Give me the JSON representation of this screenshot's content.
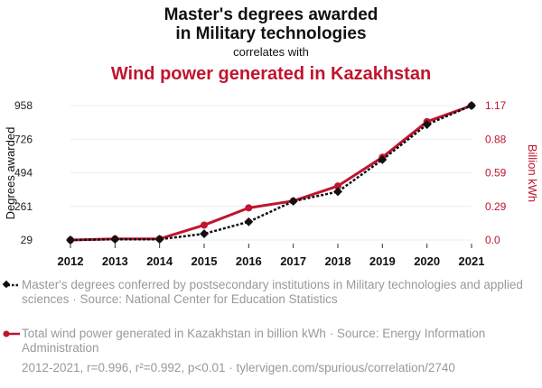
{
  "title_line1": "Master's degrees awarded",
  "title_line2": "in Military technologies",
  "subtitle": "correlates with",
  "title_series2": "Wind power generated in Kazakhstan",
  "chart_data": {
    "type": "line",
    "x": [
      2012,
      2013,
      2014,
      2015,
      2016,
      2017,
      2018,
      2019,
      2020,
      2021
    ],
    "series": [
      {
        "name": "Master's degrees conferred by postsecondary institutions in Military technologies and applied sciences · Source: National Center for Education Statistics",
        "axis": "left",
        "color": "#111111",
        "values": [
          29,
          34,
          34,
          72,
          155,
          297,
          363,
          584,
          827,
          958
        ]
      },
      {
        "name": "Total wind power generated in Kazakhstan in billion kWh · Source: Energy Information Administration",
        "axis": "right",
        "color": "#c0152f",
        "values": [
          0.0,
          0.01,
          0.01,
          0.13,
          0.28,
          0.34,
          0.47,
          0.72,
          1.03,
          1.17
        ]
      }
    ],
    "ylabel": "Degrees awarded",
    "ylabel_right": "Billion kWh",
    "yticks_left": [
      "958",
      "726",
      "494",
      "261",
      "29"
    ],
    "yticks_right": [
      "1.17",
      "0.88",
      "0.59",
      "0.29",
      "0.0"
    ],
    "ylim_left": [
      29,
      958
    ],
    "ylim_right": [
      0.0,
      1.17
    ],
    "grid": true
  },
  "legend": {
    "series1": "Master's degrees conferred by postsecondary institutions in Military technologies and applied sciences · Source: National Center for Education Statistics",
    "series2": "Total wind power generated in Kazakhstan in billion kWh · Source: Energy Information Administration"
  },
  "footer": "2012-2021, r=0.996, r²=0.992, p<0.01 · tylervigen.com/spurious/correlation/2740"
}
